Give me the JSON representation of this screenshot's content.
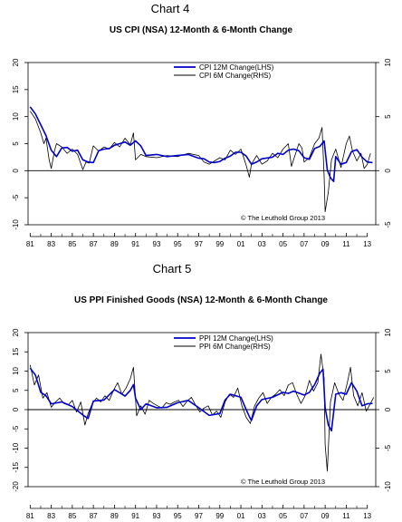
{
  "chart_data": [
    {
      "type": "line",
      "label": "Chart 4",
      "title": "US CPI (NSA) 12-Month & 6-Month Change",
      "credit": "© The Leuthold Group 2013",
      "x_tick_labels": [
        "81",
        "83",
        "85",
        "87",
        "89",
        "91",
        "93",
        "95",
        "97",
        "99",
        "01",
        "03",
        "05",
        "07",
        "09",
        "11",
        "13"
      ],
      "xlim": [
        1980.8,
        2013.8
      ],
      "left_axis": {
        "ticks": [
          "20",
          "15",
          "10",
          "5",
          "0",
          "-5",
          "-10"
        ],
        "ylim": [
          -10,
          20
        ]
      },
      "right_axis": {
        "ticks": [
          "10",
          "5",
          "0",
          "-5"
        ],
        "ylim": [
          -5,
          10
        ]
      },
      "legend": "top-center",
      "series": [
        {
          "name": "CPI 12M Change(LHS)",
          "axis": "left",
          "color": "#0000cc",
          "x": [
            1981.0,
            1981.5,
            1982.0,
            1982.5,
            1983.0,
            1983.5,
            1984.0,
            1984.5,
            1985.0,
            1985.5,
            1986.0,
            1986.5,
            1987.0,
            1987.5,
            1988.0,
            1988.5,
            1989.0,
            1989.5,
            1990.0,
            1990.5,
            1991.0,
            1991.5,
            1992.0,
            1993.0,
            1994.0,
            1995.0,
            1996.0,
            1997.0,
            1997.5,
            1998.0,
            1998.5,
            1999.0,
            1999.5,
            2000.0,
            2000.5,
            2001.0,
            2001.5,
            2002.0,
            2002.5,
            2003.0,
            2004.0,
            2004.5,
            2005.0,
            2005.5,
            2006.0,
            2006.5,
            2007.0,
            2007.5,
            2008.0,
            2008.5,
            2008.9,
            2009.2,
            2009.5,
            2009.8,
            2010.0,
            2010.5,
            2011.0,
            2011.5,
            2012.0,
            2012.5,
            2013.0,
            2013.5
          ],
          "y": [
            11.8,
            10.5,
            8.5,
            6.5,
            3.8,
            2.6,
            4.2,
            4.3,
            3.6,
            3.8,
            2.0,
            1.6,
            1.5,
            3.7,
            4.0,
            4.1,
            4.7,
            5.0,
            5.3,
            4.7,
            5.5,
            4.6,
            2.8,
            3.0,
            2.6,
            2.8,
            3.0,
            2.3,
            2.2,
            1.6,
            1.5,
            1.7,
            2.3,
            2.7,
            3.4,
            3.4,
            2.7,
            1.2,
            1.6,
            2.2,
            2.5,
            3.2,
            3.0,
            3.8,
            4.0,
            3.7,
            2.4,
            2.1,
            4.1,
            4.5,
            5.5,
            0.1,
            -1.3,
            -2.0,
            2.6,
            1.2,
            1.5,
            3.5,
            3.9,
            2.5,
            1.6,
            1.5
          ]
        },
        {
          "name": "CPI 6M Change(RHS)",
          "axis": "right",
          "color": "#000000",
          "x": [
            1981.0,
            1981.5,
            1982.0,
            1982.3,
            1982.5,
            1982.8,
            1983.0,
            1983.3,
            1983.5,
            1984.0,
            1984.5,
            1985.0,
            1985.5,
            1986.0,
            1986.3,
            1986.6,
            1987.0,
            1987.5,
            1988.0,
            1988.5,
            1989.0,
            1989.5,
            1990.0,
            1990.5,
            1990.8,
            1991.0,
            1991.5,
            1992.0,
            1993.0,
            1994.0,
            1995.0,
            1996.0,
            1997.0,
            1997.5,
            1998.0,
            1998.5,
            1999.0,
            1999.5,
            2000.0,
            2000.5,
            2001.0,
            2001.5,
            2001.8,
            2002.0,
            2002.5,
            2003.0,
            2003.5,
            2004.0,
            2004.5,
            2005.0,
            2005.5,
            2005.8,
            2006.0,
            2006.5,
            2006.8,
            2007.0,
            2007.5,
            2008.0,
            2008.4,
            2008.7,
            2008.9,
            2009.0,
            2009.3,
            2009.6,
            2010.0,
            2010.5,
            2011.0,
            2011.3,
            2011.6,
            2012.0,
            2012.4,
            2012.7,
            2013.0,
            2013.3
          ],
          "y": [
            5.5,
            4.8,
            3.5,
            2.5,
            3.0,
            1.0,
            0.2,
            1.8,
            2.5,
            2.2,
            1.6,
            2.0,
            1.5,
            0.1,
            0.8,
            0.7,
            2.3,
            1.8,
            2.2,
            2.0,
            2.6,
            2.2,
            3.0,
            2.4,
            3.5,
            1.0,
            1.5,
            1.3,
            1.2,
            1.4,
            1.3,
            1.6,
            1.4,
            0.8,
            0.6,
            0.9,
            1.2,
            1.0,
            1.9,
            1.5,
            2.0,
            0.5,
            -0.6,
            0.6,
            1.4,
            0.6,
            0.9,
            1.6,
            1.2,
            2.0,
            2.5,
            0.4,
            1.0,
            2.5,
            2.1,
            0.8,
            1.2,
            2.5,
            3.0,
            4.0,
            -0.5,
            -3.8,
            -2.0,
            1.0,
            2.0,
            0.3,
            2.5,
            3.2,
            1.8,
            0.9,
            1.6,
            0.2,
            0.6,
            1.6
          ]
        }
      ]
    },
    {
      "type": "line",
      "label": "Chart 5",
      "title": "US PPI Finished Goods (NSA) 12-Month & 6-Month Change",
      "credit": "© The Leuthold Group 2013",
      "x_tick_labels": [
        "81",
        "83",
        "85",
        "87",
        "89",
        "91",
        "93",
        "95",
        "97",
        "99",
        "01",
        "03",
        "05",
        "07",
        "09",
        "11",
        "13"
      ],
      "xlim": [
        1980.8,
        2013.8
      ],
      "left_axis": {
        "ticks": [
          "20",
          "15",
          "10",
          "5",
          "0",
          "-5",
          "-10",
          "-15",
          "-20"
        ],
        "ylim": [
          -20,
          20
        ]
      },
      "right_axis": {
        "ticks": [
          "10",
          "5",
          "0",
          "-5",
          "-10"
        ],
        "ylim": [
          -10,
          10
        ]
      },
      "legend": "top-center",
      "series": [
        {
          "name": "PPI 12M Change(LHS)",
          "axis": "left",
          "color": "#0000cc",
          "x": [
            1981.0,
            1981.5,
            1982.0,
            1982.5,
            1983.0,
            1984.0,
            1985.0,
            1986.0,
            1986.5,
            1987.0,
            1988.0,
            1989.0,
            1989.5,
            1990.0,
            1990.5,
            1990.8,
            1991.0,
            1991.5,
            1992.0,
            1993.0,
            1994.0,
            1995.0,
            1996.0,
            1997.0,
            1998.0,
            1999.0,
            1999.5,
            2000.0,
            2000.5,
            2001.0,
            2001.5,
            2001.8,
            2002.0,
            2002.5,
            2003.0,
            2004.0,
            2005.0,
            2005.5,
            2006.0,
            2007.0,
            2007.5,
            2008.0,
            2008.5,
            2008.8,
            2009.0,
            2009.3,
            2009.6,
            2010.0,
            2010.5,
            2011.0,
            2011.5,
            2012.0,
            2012.5,
            2013.0,
            2013.5
          ],
          "y": [
            10.8,
            9.0,
            4.5,
            3.6,
            1.5,
            2.0,
            0.8,
            -1.4,
            -2.3,
            2.2,
            2.5,
            5.2,
            4.4,
            3.5,
            5.0,
            6.5,
            3.0,
            0.0,
            1.5,
            0.5,
            0.6,
            1.8,
            2.4,
            0.5,
            -1.5,
            -1.0,
            2.5,
            4.0,
            3.6,
            3.2,
            0.0,
            -1.8,
            -2.8,
            1.0,
            2.6,
            3.2,
            4.5,
            4.2,
            4.8,
            3.8,
            4.5,
            6.5,
            9.5,
            10.5,
            0.5,
            -4.0,
            -5.5,
            4.0,
            4.4,
            4.0,
            7.0,
            4.8,
            1.0,
            1.5,
            1.6
          ]
        },
        {
          "name": "PPI 6M Change(RHS)",
          "axis": "right",
          "color": "#000000",
          "x": [
            1981.0,
            1981.4,
            1981.8,
            1982.2,
            1982.6,
            1983.0,
            1983.4,
            1983.8,
            1984.2,
            1984.6,
            1985.0,
            1985.4,
            1985.8,
            1986.2,
            1986.5,
            1986.9,
            1987.3,
            1987.7,
            1988.1,
            1988.5,
            1988.9,
            1989.3,
            1989.7,
            1990.1,
            1990.5,
            1990.8,
            1991.1,
            1991.5,
            1991.9,
            1992.3,
            1992.7,
            1993.1,
            1993.5,
            1993.9,
            1994.3,
            1994.7,
            1995.1,
            1995.5,
            1995.9,
            1996.3,
            1996.7,
            1997.1,
            1997.5,
            1997.9,
            1998.3,
            1998.7,
            1999.1,
            1999.5,
            1999.9,
            2000.3,
            2000.7,
            2001.1,
            2001.5,
            2001.9,
            2002.3,
            2002.7,
            2003.1,
            2003.5,
            2003.9,
            2004.3,
            2004.7,
            2005.1,
            2005.5,
            2005.9,
            2006.3,
            2006.7,
            2007.1,
            2007.5,
            2007.9,
            2008.3,
            2008.6,
            2008.9,
            2009.0,
            2009.2,
            2009.5,
            2009.9,
            2010.3,
            2010.7,
            2011.1,
            2011.4,
            2011.7,
            2012.1,
            2012.5,
            2012.9,
            2013.3,
            2013.6
          ],
          "y": [
            5.8,
            3.2,
            4.5,
            1.5,
            2.2,
            0.3,
            1.0,
            1.5,
            0.8,
            0.6,
            1.2,
            -0.3,
            1.0,
            -2.0,
            -0.5,
            0.8,
            1.5,
            1.0,
            1.8,
            1.2,
            2.5,
            3.5,
            2.0,
            2.8,
            4.0,
            5.5,
            -0.8,
            0.5,
            -0.6,
            1.2,
            0.8,
            0.5,
            0.2,
            0.9,
            0.7,
            1.0,
            1.2,
            0.4,
            1.1,
            1.6,
            0.6,
            -0.3,
            0.2,
            0.5,
            -0.7,
            -0.2,
            -1.0,
            1.0,
            2.0,
            1.6,
            2.8,
            0.5,
            -1.0,
            -1.8,
            0.5,
            1.5,
            2.2,
            0.8,
            1.6,
            2.0,
            2.6,
            1.8,
            3.2,
            3.5,
            2.0,
            0.8,
            1.8,
            3.8,
            2.4,
            3.5,
            7.2,
            4.0,
            -4.5,
            -8.0,
            1.0,
            3.5,
            2.0,
            1.2,
            3.5,
            5.5,
            1.8,
            0.5,
            2.2,
            -0.2,
            0.8,
            1.6
          ]
        }
      ]
    }
  ]
}
